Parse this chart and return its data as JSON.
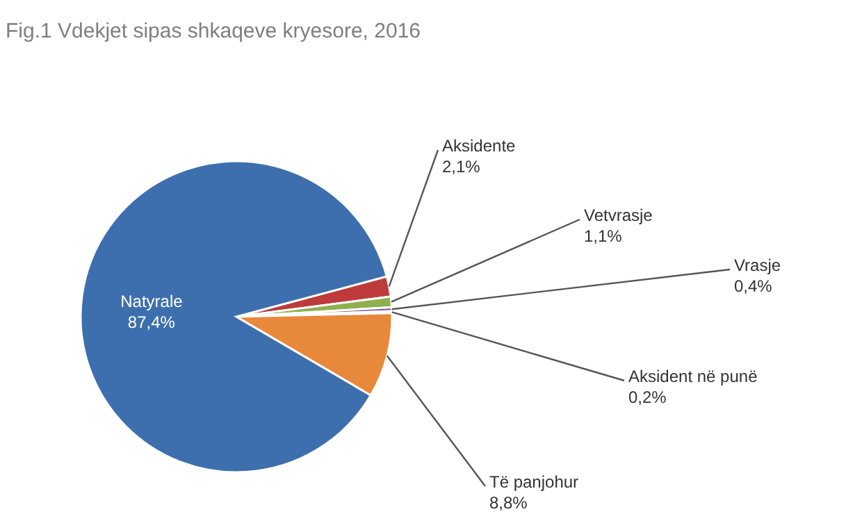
{
  "chart_data": {
    "type": "pie",
    "title": "Fig.1 Vdekjet sipas shkaqeve kryesore, 2016",
    "categories": [
      "Aksidente",
      "Vetvrasje",
      "Vrasje",
      "Aksident në punë",
      "Të panjohur",
      "Natyrale"
    ],
    "values": [
      2.1,
      1.1,
      0.4,
      0.2,
      8.8,
      87.4
    ],
    "value_labels": [
      "2,1%",
      "1,1%",
      "0,4%",
      "0,2%",
      "8,8%",
      "87,4%"
    ],
    "colors": [
      "#be3b3b",
      "#8fb04f",
      "#7d60a0",
      "#4bacc6",
      "#e8883a",
      "#3d6fae"
    ],
    "legend": false
  }
}
